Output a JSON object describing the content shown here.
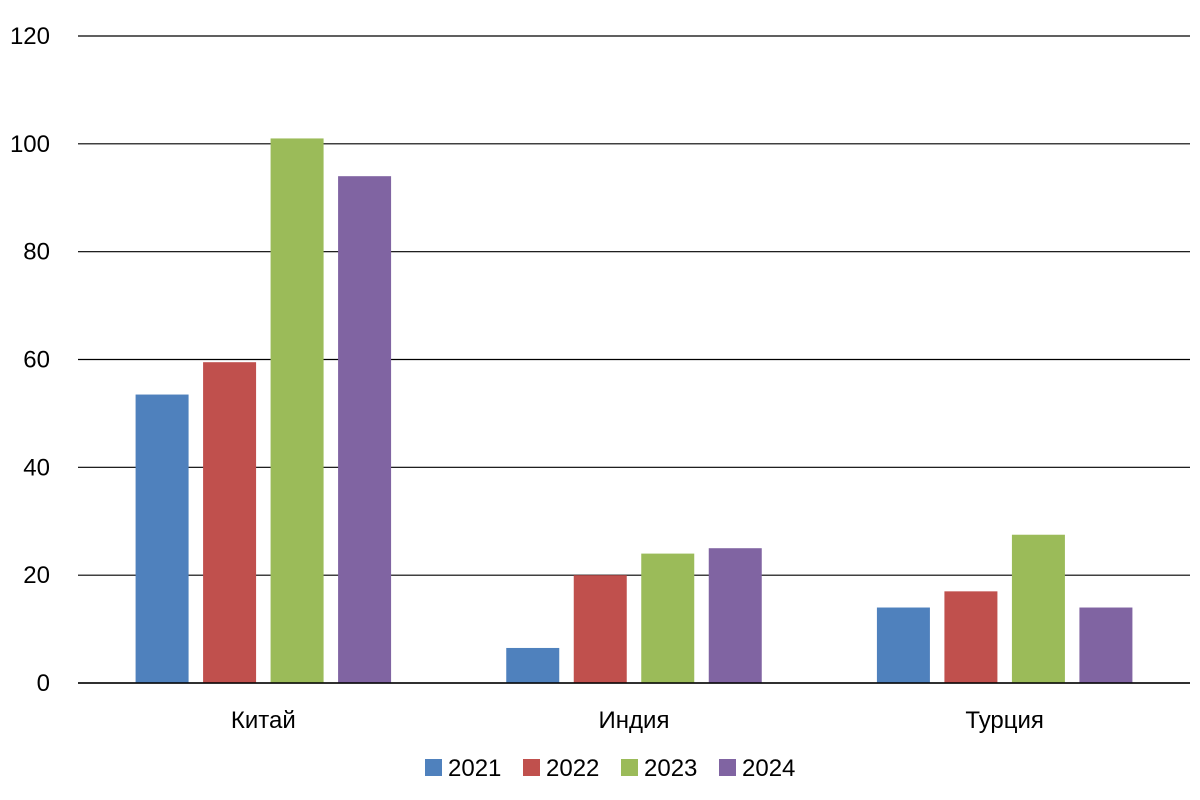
{
  "chart_data": {
    "type": "bar",
    "categories": [
      "Китай",
      "Индия",
      "Турция"
    ],
    "series": [
      {
        "name": "2021",
        "color": "#4F81BD",
        "values": [
          53.5,
          6.5,
          14
        ]
      },
      {
        "name": "2022",
        "color": "#C0504D",
        "values": [
          59.5,
          20,
          17
        ]
      },
      {
        "name": "2023",
        "color": "#9BBB59",
        "values": [
          101,
          24,
          27.5
        ]
      },
      {
        "name": "2024",
        "color": "#8064A2",
        "values": [
          94,
          25,
          14
        ]
      }
    ],
    "yticks": [
      "0",
      "20",
      "40",
      "60",
      "80",
      "100",
      "120"
    ],
    "ylim": [
      0,
      120
    ],
    "grid": true,
    "legend": "bottom"
  }
}
